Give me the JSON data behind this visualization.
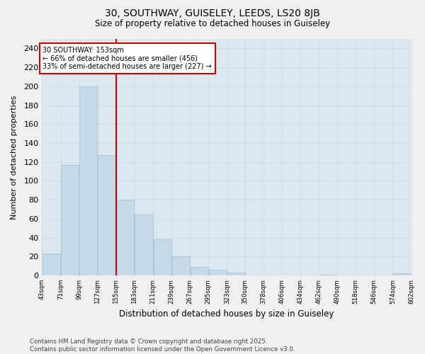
{
  "title1": "30, SOUTHWAY, GUISELEY, LEEDS, LS20 8JB",
  "title2": "Size of property relative to detached houses in Guiseley",
  "xlabel": "Distribution of detached houses by size in Guiseley",
  "ylabel": "Number of detached properties",
  "bar_edges": [
    43,
    71,
    99,
    127,
    155,
    183,
    211,
    239,
    267,
    295,
    323,
    350,
    378,
    406,
    434,
    462,
    490,
    518,
    546,
    574,
    602
  ],
  "bar_heights": [
    23,
    117,
    200,
    127,
    80,
    64,
    38,
    20,
    9,
    6,
    3,
    0,
    0,
    0,
    0,
    1,
    0,
    0,
    0,
    2
  ],
  "bar_color": "#c6d9e8",
  "bar_edgecolor": "#a0bcd0",
  "vline_x": 155,
  "vline_color": "#cc0000",
  "annotation_text": "30 SOUTHWAY: 153sqm\n← 66% of detached houses are smaller (456)\n33% of semi-detached houses are larger (227) →",
  "annotation_box_color": "#ffffff",
  "annotation_box_edgecolor": "#cc0000",
  "ylim": [
    0,
    250
  ],
  "yticks": [
    0,
    20,
    40,
    60,
    80,
    100,
    120,
    140,
    160,
    180,
    200,
    220,
    240
  ],
  "grid_color": "#d0dce8",
  "plot_bg_color": "#dce8f0",
  "fig_bg_color": "#f0f0f0",
  "footer_text": "Contains HM Land Registry data © Crown copyright and database right 2025.\nContains public sector information licensed under the Open Government Licence v3.0.",
  "tick_labels": [
    "43sqm",
    "71sqm",
    "99sqm",
    "127sqm",
    "155sqm",
    "183sqm",
    "211sqm",
    "239sqm",
    "267sqm",
    "295sqm",
    "323sqm",
    "350sqm",
    "378sqm",
    "406sqm",
    "434sqm",
    "462sqm",
    "490sqm",
    "518sqm",
    "546sqm",
    "574sqm",
    "602sqm"
  ]
}
